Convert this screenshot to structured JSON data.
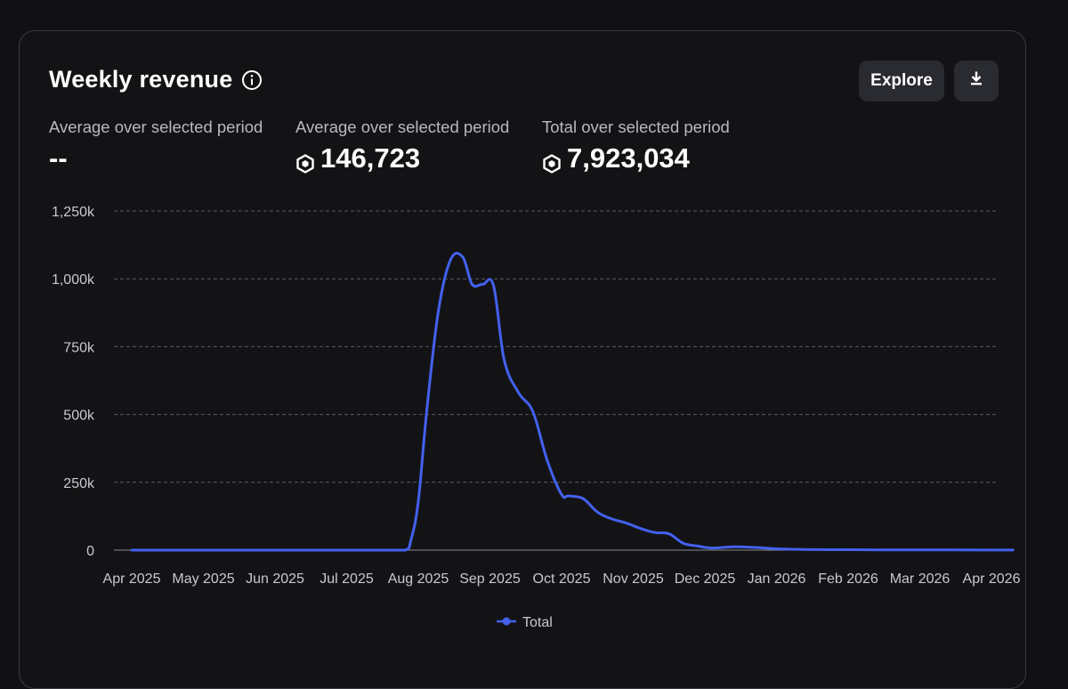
{
  "header": {
    "title": "Weekly revenue",
    "explore_label": "Explore",
    "download_icon": "download-icon",
    "info_icon": "info-icon"
  },
  "stats": [
    {
      "label": "Average over selected period",
      "value": "--",
      "show_currency": false
    },
    {
      "label": "Average over selected period",
      "value": "146,723",
      "show_currency": true
    },
    {
      "label": "Total over selected period",
      "value": "7,923,034",
      "show_currency": true
    }
  ],
  "colors": {
    "background": "#111114",
    "series": "#4361ee",
    "grid": "#5a5a60",
    "axis_text": "#c8c9ce"
  },
  "chart_data": {
    "type": "line",
    "title": "Weekly revenue",
    "xlabel": "",
    "ylabel": "",
    "ylim": [
      0,
      1250000
    ],
    "xlim": [
      0,
      12.3
    ],
    "y_ticks": [
      {
        "value": 0,
        "label": "0"
      },
      {
        "value": 250000,
        "label": "250k"
      },
      {
        "value": 500000,
        "label": "500k"
      },
      {
        "value": 750000,
        "label": "750k"
      },
      {
        "value": 1000000,
        "label": "1,000k"
      },
      {
        "value": 1250000,
        "label": "1,250k"
      }
    ],
    "x_ticks": [
      {
        "value": 0,
        "label": "Apr 2025"
      },
      {
        "value": 1,
        "label": "May 2025"
      },
      {
        "value": 2,
        "label": "Jun 2025"
      },
      {
        "value": 3,
        "label": "Jul 2025"
      },
      {
        "value": 4,
        "label": "Aug 2025"
      },
      {
        "value": 5,
        "label": "Sep 2025"
      },
      {
        "value": 6,
        "label": "Oct 2025"
      },
      {
        "value": 7,
        "label": "Nov 2025"
      },
      {
        "value": 8,
        "label": "Dec 2025"
      },
      {
        "value": 9,
        "label": "Jan 2026"
      },
      {
        "value": 10,
        "label": "Feb 2026"
      },
      {
        "value": 11,
        "label": "Mar 2026"
      },
      {
        "value": 12,
        "label": "Apr 2026"
      }
    ],
    "legend": {
      "position": "bottom-center",
      "entries": [
        "Total"
      ]
    },
    "grid": true,
    "series": [
      {
        "name": "Total",
        "x": [
          0,
          0.5,
          1,
          1.5,
          2,
          2.5,
          3,
          3.5,
          3.82,
          3.9,
          4.0,
          4.12,
          4.28,
          4.45,
          4.62,
          4.75,
          4.9,
          5.05,
          5.2,
          5.4,
          5.6,
          5.8,
          6.0,
          6.1,
          6.3,
          6.5,
          6.7,
          6.9,
          7.1,
          7.3,
          7.5,
          7.7,
          7.9,
          8.1,
          8.4,
          8.7,
          9.0,
          9.3,
          9.6,
          10.0,
          10.5,
          11.0,
          11.5,
          12.0,
          12.3
        ],
        "y": [
          0,
          0,
          0,
          0,
          0,
          0,
          0,
          0,
          0,
          40000,
          180000,
          520000,
          880000,
          1070000,
          1080000,
          980000,
          980000,
          975000,
          700000,
          580000,
          510000,
          330000,
          205000,
          200000,
          190000,
          140000,
          115000,
          100000,
          80000,
          65000,
          60000,
          25000,
          15000,
          8000,
          12000,
          10000,
          5000,
          3000,
          2000,
          1500,
          1000,
          800,
          500,
          300,
          200
        ]
      }
    ]
  }
}
